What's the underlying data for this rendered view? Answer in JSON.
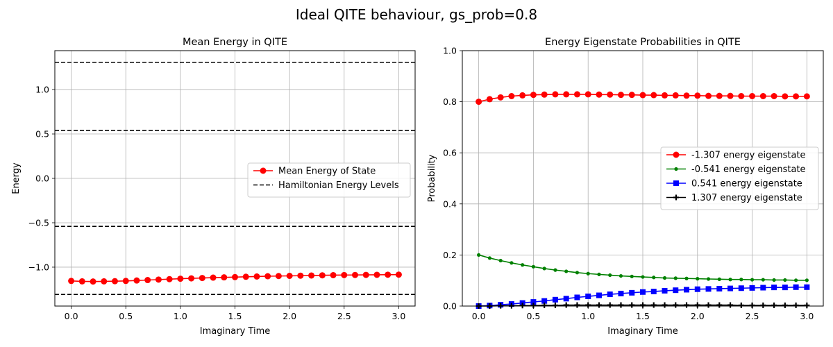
{
  "figure": {
    "suptitle": "Ideal QITE behaviour, gs_prob=0.8"
  },
  "chart_data": [
    {
      "type": "line",
      "title": "Mean Energy in QITE",
      "xlabel": "Imaginary Time",
      "ylabel": "Energy",
      "xlim": [
        -0.15,
        3.15
      ],
      "ylim": [
        -1.438,
        1.438
      ],
      "xticks": [
        0.0,
        0.5,
        1.0,
        1.5,
        2.0,
        2.5,
        3.0
      ],
      "xtick_labels": [
        "0.0",
        "0.5",
        "1.0",
        "1.5",
        "2.0",
        "2.5",
        "3.0"
      ],
      "yticks": [
        -1.0,
        -0.5,
        0.0,
        0.5,
        1.0
      ],
      "ytick_labels": [
        "−1.0",
        "−0.5",
        "0.0",
        "0.5",
        "1.0"
      ],
      "grid": true,
      "legend_position": "center-right",
      "x": [
        0.0,
        0.1,
        0.2,
        0.3,
        0.4,
        0.5,
        0.6,
        0.7,
        0.8,
        0.9,
        1.0,
        1.1,
        1.2,
        1.3,
        1.4,
        1.5,
        1.6,
        1.7,
        1.8,
        1.9,
        2.0,
        2.1,
        2.2,
        2.3,
        2.4,
        2.5,
        2.6,
        2.7,
        2.8,
        2.9,
        3.0
      ],
      "series": [
        {
          "name": "Mean Energy of State",
          "color": "#ff0000",
          "marker": "circle",
          "values": [
            -1.155,
            -1.16,
            -1.162,
            -1.16,
            -1.158,
            -1.155,
            -1.15,
            -1.145,
            -1.14,
            -1.135,
            -1.13,
            -1.126,
            -1.122,
            -1.118,
            -1.115,
            -1.112,
            -1.108,
            -1.105,
            -1.102,
            -1.1,
            -1.098,
            -1.096,
            -1.094,
            -1.092,
            -1.09,
            -1.089,
            -1.088,
            -1.087,
            -1.086,
            -1.085,
            -1.084
          ]
        }
      ],
      "hlines": {
        "name": "Hamiltonian Energy Levels",
        "color": "#000000",
        "style": "dashed",
        "values": [
          -1.307,
          -0.541,
          0.541,
          1.307
        ]
      }
    },
    {
      "type": "line",
      "title": "Energy Eigenstate Probabilities in QITE",
      "xlabel": "Imaginary Time",
      "ylabel": "Probability",
      "xlim": [
        -0.15,
        3.15
      ],
      "ylim": [
        0.0,
        1.0
      ],
      "xticks": [
        0.0,
        0.5,
        1.0,
        1.5,
        2.0,
        2.5,
        3.0
      ],
      "xtick_labels": [
        "0.0",
        "0.5",
        "1.0",
        "1.5",
        "2.0",
        "2.5",
        "3.0"
      ],
      "yticks": [
        0.0,
        0.2,
        0.4,
        0.6,
        0.8,
        1.0
      ],
      "ytick_labels": [
        "0.0",
        "0.2",
        "0.4",
        "0.6",
        "0.8",
        "1.0"
      ],
      "grid": true,
      "legend_position": "center-right",
      "x": [
        0.0,
        0.1,
        0.2,
        0.3,
        0.4,
        0.5,
        0.6,
        0.7,
        0.8,
        0.9,
        1.0,
        1.1,
        1.2,
        1.3,
        1.4,
        1.5,
        1.6,
        1.7,
        1.8,
        1.9,
        2.0,
        2.1,
        2.2,
        2.3,
        2.4,
        2.5,
        2.6,
        2.7,
        2.8,
        2.9,
        3.0
      ],
      "series": [
        {
          "name": "-1.307 energy eigenstate",
          "color": "#ff0000",
          "marker": "circle",
          "values": [
            0.8,
            0.81,
            0.817,
            0.822,
            0.825,
            0.827,
            0.828,
            0.829,
            0.829,
            0.829,
            0.829,
            0.828,
            0.828,
            0.827,
            0.827,
            0.826,
            0.826,
            0.825,
            0.825,
            0.824,
            0.824,
            0.823,
            0.823,
            0.823,
            0.822,
            0.822,
            0.822,
            0.822,
            0.821,
            0.821,
            0.821
          ]
        },
        {
          "name": "-0.541 energy eigenstate",
          "color": "#008000",
          "marker": "small-circle",
          "values": [
            0.2,
            0.188,
            0.178,
            0.169,
            0.161,
            0.154,
            0.147,
            0.141,
            0.136,
            0.131,
            0.127,
            0.124,
            0.121,
            0.118,
            0.116,
            0.114,
            0.112,
            0.11,
            0.109,
            0.108,
            0.107,
            0.106,
            0.105,
            0.104,
            0.104,
            0.103,
            0.103,
            0.102,
            0.102,
            0.101,
            0.101
          ]
        },
        {
          "name": "0.541 energy eigenstate",
          "color": "#0000ff",
          "marker": "square",
          "values": [
            0.0,
            0.002,
            0.005,
            0.008,
            0.012,
            0.016,
            0.02,
            0.025,
            0.029,
            0.034,
            0.038,
            0.042,
            0.046,
            0.049,
            0.052,
            0.055,
            0.057,
            0.06,
            0.062,
            0.064,
            0.066,
            0.067,
            0.068,
            0.069,
            0.07,
            0.071,
            0.072,
            0.073,
            0.073,
            0.074,
            0.074
          ]
        },
        {
          "name": "1.307 energy eigenstate",
          "color": "#000000",
          "marker": "plus",
          "values": [
            0.0,
            0.0,
            0.001,
            0.001,
            0.002,
            0.002,
            0.003,
            0.003,
            0.004,
            0.004,
            0.004,
            0.004,
            0.004,
            0.004,
            0.004,
            0.004,
            0.004,
            0.004,
            0.004,
            0.004,
            0.004,
            0.004,
            0.004,
            0.004,
            0.003,
            0.003,
            0.003,
            0.003,
            0.003,
            0.003,
            0.003
          ]
        }
      ]
    }
  ]
}
